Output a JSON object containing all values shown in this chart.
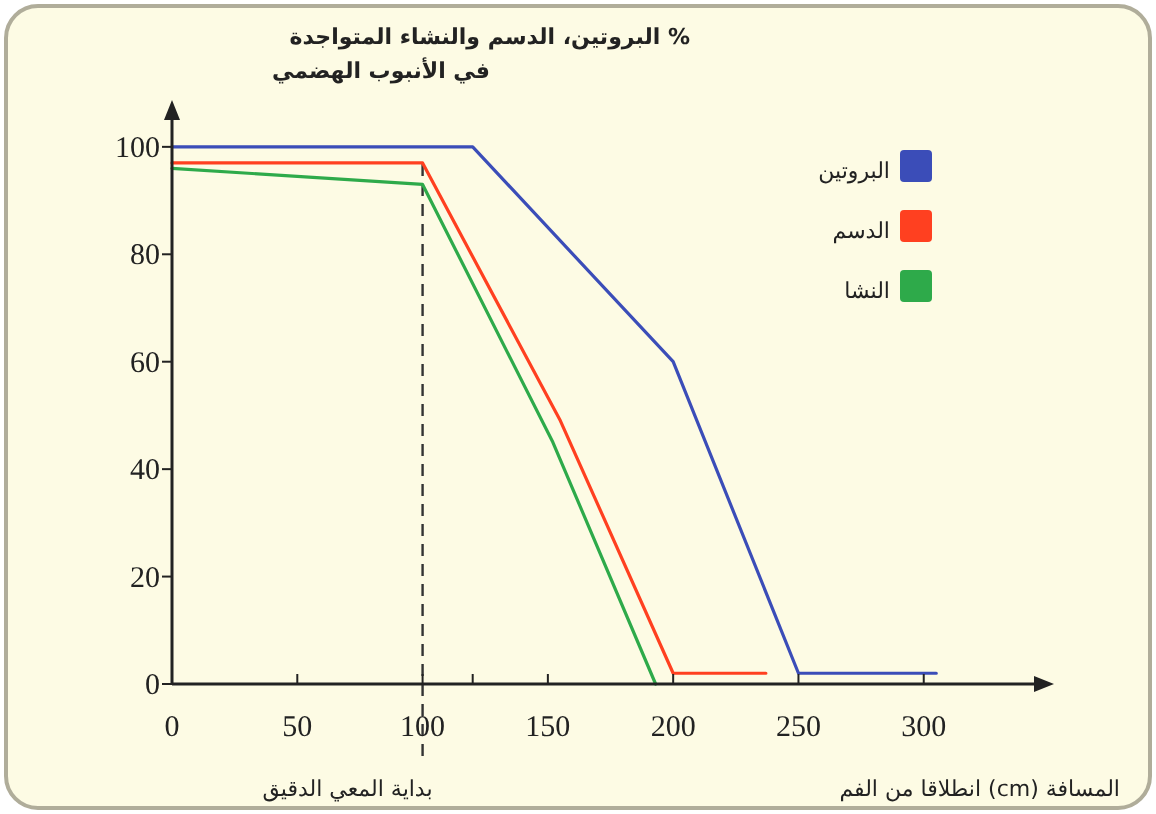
{
  "chart_data": {
    "type": "line",
    "title": "% البروتين، الدسم والنشاء المتواجدة\nفي الأنبوب الهضمي",
    "xlabel": "المسافة (cm) انطلاقا من الفم",
    "series": [
      {
        "name": "البروتين",
        "color": "#3b4db8",
        "x": [
          0,
          120,
          200,
          250,
          305
        ],
        "values": [
          100,
          100,
          60,
          2,
          2
        ]
      },
      {
        "name": "الدسم",
        "color": "#ff4020",
        "x": [
          0,
          100,
          155,
          200,
          237
        ],
        "values": [
          97,
          97,
          49,
          2,
          2
        ]
      },
      {
        "name": "النشا",
        "color": "#2eaa4a",
        "x": [
          0,
          100,
          152,
          193
        ],
        "values": [
          96,
          93,
          45,
          0
        ]
      }
    ],
    "xlim": [
      0,
      344
    ],
    "ylim": [
      0,
      105
    ],
    "xticks": [
      0,
      50,
      100,
      {
        "value": 120,
        "label": null
      },
      150,
      200,
      250,
      300
    ],
    "yticks": [
      0,
      20,
      40,
      60,
      80,
      100
    ],
    "ref_lines": [
      {
        "axis": "x",
        "value": 100,
        "label": "بداية المعي الدقيق",
        "line_style": "dashed",
        "color": "#333333"
      }
    ],
    "legend": "top right",
    "grid": false,
    "marker": "none",
    "line_style": "solid"
  }
}
